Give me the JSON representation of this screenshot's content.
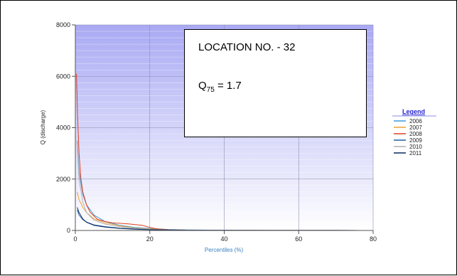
{
  "chart_data": {
    "type": "line",
    "title": "",
    "xlabel": "Percentiles (%)",
    "ylabel": "Q (discharge)",
    "xlim": [
      0,
      80
    ],
    "ylim": [
      0,
      8000
    ],
    "xticks": [
      "0",
      "20",
      "40",
      "60",
      "80"
    ],
    "yticks": [
      "0",
      "2000",
      "4000",
      "6000",
      "8000"
    ],
    "grid": true,
    "legend": {
      "title": "Legend",
      "placement": "right"
    },
    "annotation": {
      "location_text": "LOCATION NO. - 32",
      "q_symbol": "Q",
      "q_subscript": "75",
      "q_value": " = 1.7"
    },
    "series": [
      {
        "name": "2006",
        "color": "#3a9ad9",
        "points": [
          [
            0.5,
            3500
          ],
          [
            1,
            2300
          ],
          [
            2,
            1400
          ],
          [
            3,
            1000
          ],
          [
            5,
            600
          ],
          [
            8,
            350
          ],
          [
            12,
            200
          ],
          [
            16,
            120
          ],
          [
            20,
            80
          ],
          [
            25,
            40
          ],
          [
            30,
            20
          ],
          [
            40,
            10
          ],
          [
            50,
            5
          ],
          [
            60,
            3
          ],
          [
            70,
            2
          ],
          [
            80,
            1
          ]
        ]
      },
      {
        "name": "2007",
        "color": "#f0a030",
        "points": [
          [
            0.5,
            1500
          ],
          [
            1,
            1200
          ],
          [
            2,
            900
          ],
          [
            3,
            700
          ],
          [
            5,
            450
          ],
          [
            8,
            300
          ],
          [
            12,
            180
          ],
          [
            16,
            100
          ],
          [
            20,
            60
          ],
          [
            25,
            30
          ],
          [
            30,
            15
          ],
          [
            40,
            8
          ],
          [
            50,
            4
          ],
          [
            60,
            3
          ],
          [
            70,
            2
          ],
          [
            80,
            1
          ]
        ]
      },
      {
        "name": "2008",
        "color": "#e04020",
        "points": [
          [
            0.3,
            6100
          ],
          [
            0.6,
            4500
          ],
          [
            1,
            3000
          ],
          [
            1.5,
            2000
          ],
          [
            2,
            1500
          ],
          [
            3,
            1000
          ],
          [
            4,
            700
          ],
          [
            6,
            430
          ],
          [
            8,
            350
          ],
          [
            10,
            300
          ],
          [
            14,
            260
          ],
          [
            18,
            200
          ],
          [
            20,
            120
          ],
          [
            22,
            60
          ],
          [
            25,
            30
          ],
          [
            30,
            15
          ],
          [
            40,
            8
          ],
          [
            50,
            5
          ],
          [
            60,
            3
          ],
          [
            70,
            2
          ],
          [
            80,
            1
          ]
        ]
      },
      {
        "name": "2009",
        "color": "#1f5fa0",
        "points": [
          [
            0.5,
            800
          ],
          [
            1,
            600
          ],
          [
            2,
            420
          ],
          [
            3,
            330
          ],
          [
            5,
            220
          ],
          [
            8,
            150
          ],
          [
            12,
            90
          ],
          [
            16,
            60
          ],
          [
            20,
            40
          ],
          [
            25,
            25
          ],
          [
            30,
            15
          ],
          [
            40,
            10
          ],
          [
            46,
            5
          ],
          [
            50,
            4
          ],
          [
            60,
            3
          ],
          [
            70,
            2
          ],
          [
            80,
            1
          ]
        ]
      },
      {
        "name": "2010",
        "color": "#b0b0b0",
        "points": [
          [
            0.5,
            3400
          ],
          [
            1,
            2000
          ],
          [
            2,
            1100
          ],
          [
            3,
            700
          ],
          [
            5,
            400
          ],
          [
            8,
            250
          ],
          [
            12,
            150
          ],
          [
            16,
            90
          ],
          [
            20,
            50
          ],
          [
            25,
            25
          ],
          [
            30,
            12
          ],
          [
            40,
            6
          ],
          [
            50,
            4
          ],
          [
            60,
            3
          ],
          [
            70,
            2
          ],
          [
            80,
            1
          ]
        ]
      },
      {
        "name": "2011",
        "color": "#0a2a5a",
        "points": [
          [
            0.5,
            900
          ],
          [
            1,
            700
          ],
          [
            2,
            450
          ],
          [
            3,
            320
          ],
          [
            5,
            200
          ],
          [
            8,
            130
          ],
          [
            12,
            80
          ],
          [
            16,
            50
          ],
          [
            20,
            30
          ],
          [
            25,
            18
          ],
          [
            30,
            10
          ],
          [
            40,
            6
          ],
          [
            50,
            4
          ],
          [
            60,
            3
          ],
          [
            70,
            2
          ],
          [
            80,
            1
          ]
        ]
      }
    ]
  }
}
